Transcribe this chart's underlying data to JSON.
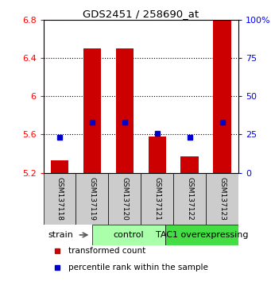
{
  "title": "GDS2451 / 258690_at",
  "samples": [
    "GSM137118",
    "GSM137119",
    "GSM137120",
    "GSM137121",
    "GSM137122",
    "GSM137123"
  ],
  "bar_values": [
    5.33,
    6.5,
    6.5,
    5.58,
    5.37,
    6.8
  ],
  "percentile_values": [
    5.57,
    5.73,
    5.73,
    5.61,
    5.57,
    5.73
  ],
  "y_min": 5.2,
  "y_max": 6.8,
  "y_ticks_left": [
    5.2,
    5.6,
    6.0,
    6.4,
    6.8
  ],
  "y_ticks_right_labels": [
    "0",
    "25",
    "50",
    "75",
    "100%"
  ],
  "bar_color": "#cc0000",
  "percentile_color": "#0000cc",
  "bar_width": 0.55,
  "bar_bottom": 5.2,
  "group_control_color": "#aaffaa",
  "group_tac1_color": "#44dd44",
  "sample_box_color": "#cccccc",
  "legend_items": [
    {
      "label": "transformed count",
      "color": "#cc0000"
    },
    {
      "label": "percentile rank within the sample",
      "color": "#0000cc"
    }
  ],
  "strain_label": "strain"
}
